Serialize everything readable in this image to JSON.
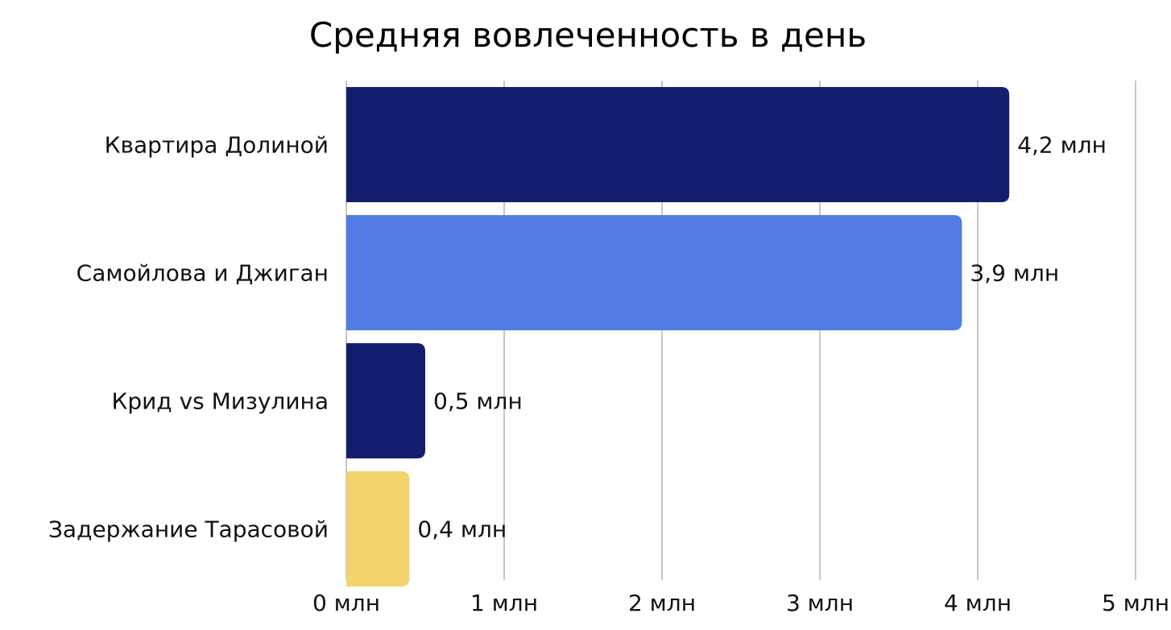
{
  "chart_data": {
    "type": "bar",
    "orientation": "horizontal",
    "title": "Средняя вовлеченность в день",
    "xlabel": "",
    "ylabel": "",
    "categories": [
      "Квартира Долиной",
      "Самойлова и Джиган",
      "Крид vs Мизулина",
      "Задержание Тарасовой"
    ],
    "values": [
      4.2,
      3.9,
      0.5,
      0.4
    ],
    "data_labels": [
      "4,2 млн",
      "3,9 млн",
      "0,5 млн",
      "0,4 млн"
    ],
    "bar_colors": [
      "#131F6E",
      "#527CE3",
      "#131F6E",
      "#F3D36E"
    ],
    "xlim": [
      0,
      5
    ],
    "x_ticks": [
      0,
      1,
      2,
      3,
      4,
      5
    ],
    "x_tick_labels": [
      "0 млн",
      "1 млн",
      "2 млн",
      "3 млн",
      "4 млн",
      "5 млн"
    ],
    "grid": true,
    "gridline_color": "#C7C7C7",
    "legend": "none"
  }
}
